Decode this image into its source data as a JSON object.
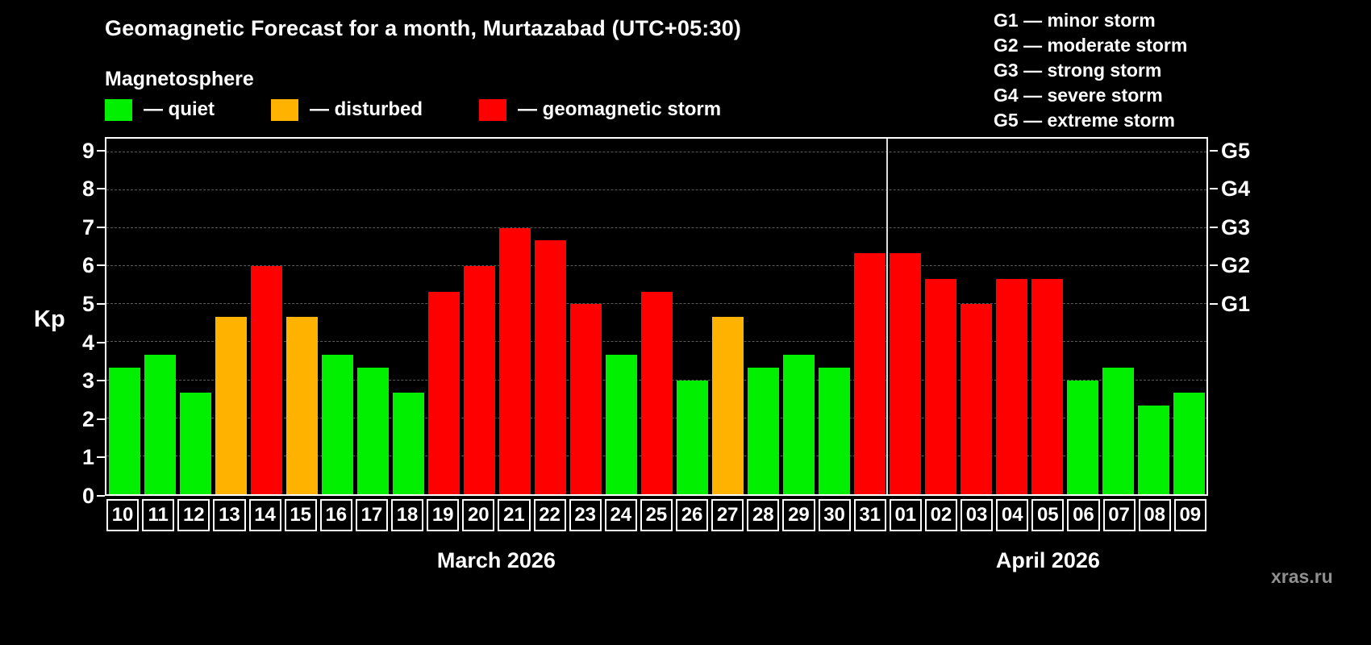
{
  "title": "Geomagnetic Forecast for a month, Murtazabad (UTC+05:30)",
  "subtitle": "Magnetosphere",
  "legend": [
    {
      "key": "quiet",
      "label": "— quiet",
      "color": "#00f000"
    },
    {
      "key": "disturbed",
      "label": "— disturbed",
      "color": "#ffb300"
    },
    {
      "key": "storm",
      "label": "— geomagnetic storm",
      "color": "#ff0000"
    }
  ],
  "storm_scale": [
    "G1 — minor storm",
    "G2 — moderate storm",
    "G3 — strong storm",
    "G4 — severe storm",
    "G5 — extreme storm"
  ],
  "watermark": "xras.ru",
  "palette": {
    "quiet": "#00f000",
    "disturbed": "#ffb300",
    "storm": "#ff0000"
  },
  "chart_data": {
    "type": "bar",
    "title": "Geomagnetic Forecast for a month, Murtazabad (UTC+05:30)",
    "ylabel": "Kp",
    "ylim": [
      0,
      9
    ],
    "yticks": [
      0,
      1,
      2,
      3,
      4,
      5,
      6,
      7,
      8,
      9
    ],
    "grid": "horizontal dashed",
    "legend_position": "top",
    "right_axis_ticks": [
      {
        "label": "G1",
        "value": 5
      },
      {
        "label": "G2",
        "value": 6
      },
      {
        "label": "G3",
        "value": 7
      },
      {
        "label": "G4",
        "value": 8
      },
      {
        "label": "G5",
        "value": 9
      }
    ],
    "categories": [
      "10",
      "11",
      "12",
      "13",
      "14",
      "15",
      "16",
      "17",
      "18",
      "19",
      "20",
      "21",
      "22",
      "23",
      "24",
      "25",
      "26",
      "27",
      "28",
      "29",
      "30",
      "31",
      "01",
      "02",
      "03",
      "04",
      "05",
      "06",
      "07",
      "08",
      "09"
    ],
    "values": [
      3.33,
      3.67,
      2.67,
      4.67,
      6.0,
      4.67,
      3.67,
      3.33,
      2.67,
      5.33,
      6.0,
      7.0,
      6.67,
      5.0,
      3.67,
      5.33,
      3.0,
      4.67,
      3.33,
      3.67,
      3.33,
      6.33,
      6.33,
      5.67,
      5.0,
      5.67,
      5.67,
      3.0,
      3.33,
      2.33,
      2.67
    ],
    "status": [
      "quiet",
      "quiet",
      "quiet",
      "disturbed",
      "storm",
      "disturbed",
      "quiet",
      "quiet",
      "quiet",
      "storm",
      "storm",
      "storm",
      "storm",
      "storm",
      "quiet",
      "storm",
      "quiet",
      "disturbed",
      "quiet",
      "quiet",
      "quiet",
      "storm",
      "storm",
      "storm",
      "storm",
      "storm",
      "storm",
      "quiet",
      "quiet",
      "quiet",
      "quiet"
    ],
    "month_groups": [
      {
        "label": "March 2026",
        "count": 22
      },
      {
        "label": "April 2026",
        "count": 9
      }
    ]
  }
}
